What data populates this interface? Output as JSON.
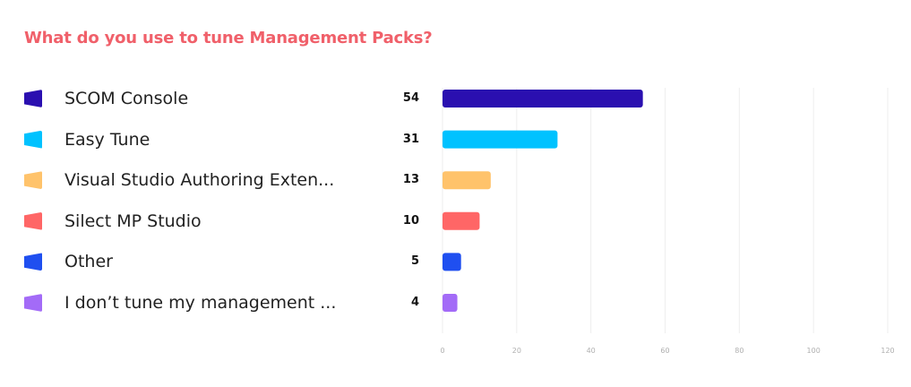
{
  "chart_data": {
    "type": "bar",
    "orientation": "horizontal",
    "title": "What do you use to tune Management Packs?",
    "categories": [
      "SCOM Console",
      "Easy Tune",
      "Visual Studio Authoring Exten...",
      "Silect MP Studio",
      "Other",
      "I don’t tune my management ..."
    ],
    "values": [
      54,
      31,
      13,
      10,
      5,
      4
    ],
    "colors": [
      "#2a0fb0",
      "#00c2ff",
      "#ffc36b",
      "#ff6666",
      "#1f4ff0",
      "#a36bf7"
    ],
    "xlim": [
      0,
      120
    ],
    "x_ticks": [
      "0",
      "20",
      "40",
      "60",
      "80",
      "100",
      "120"
    ],
    "x_tick_values": [
      0,
      20,
      40,
      60,
      80,
      100,
      120
    ],
    "grid": true,
    "legend_position": "left"
  },
  "title_color": "#f0606a"
}
